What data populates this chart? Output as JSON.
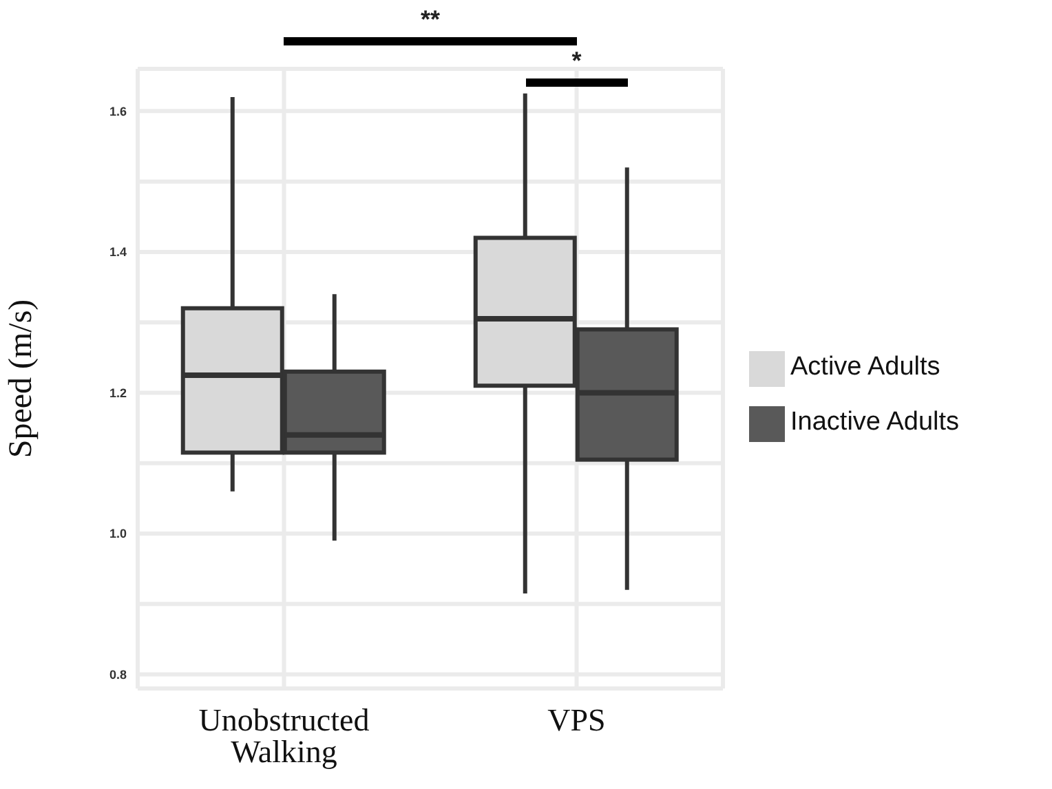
{
  "chart_data": {
    "type": "box",
    "ylabel": "Speed (m/s)",
    "categories": [
      "Unobstructed Walking",
      "VPS"
    ],
    "series": [
      {
        "name": "Active Adults",
        "color": "#d9d9d9",
        "boxes": [
          {
            "low": 1.06,
            "q1": 1.115,
            "median": 1.225,
            "q3": 1.32,
            "high": 1.62
          },
          {
            "low": 0.915,
            "q1": 1.21,
            "median": 1.305,
            "q3": 1.42,
            "high": 1.625
          }
        ]
      },
      {
        "name": "Inactive Adults",
        "color": "#595959",
        "boxes": [
          {
            "low": 0.99,
            "q1": 1.115,
            "median": 1.14,
            "q3": 1.23,
            "high": 1.34
          },
          {
            "low": 0.92,
            "q1": 1.105,
            "median": 1.2,
            "q3": 1.29,
            "high": 1.52
          }
        ]
      }
    ],
    "ylim": [
      0.78,
      1.66
    ],
    "yticks": [
      0.8,
      {
        "value": 0.9,
        "label": null
      },
      {
        "value": 1.0,
        "label": "1.0"
      },
      {
        "value": 1.1,
        "label": null
      },
      1.2,
      {
        "value": 1.3,
        "label": null
      },
      1.4,
      {
        "value": 1.5,
        "label": null
      },
      1.6
    ],
    "grid": true,
    "legend": "right",
    "annotations": [
      "**",
      "*"
    ]
  }
}
